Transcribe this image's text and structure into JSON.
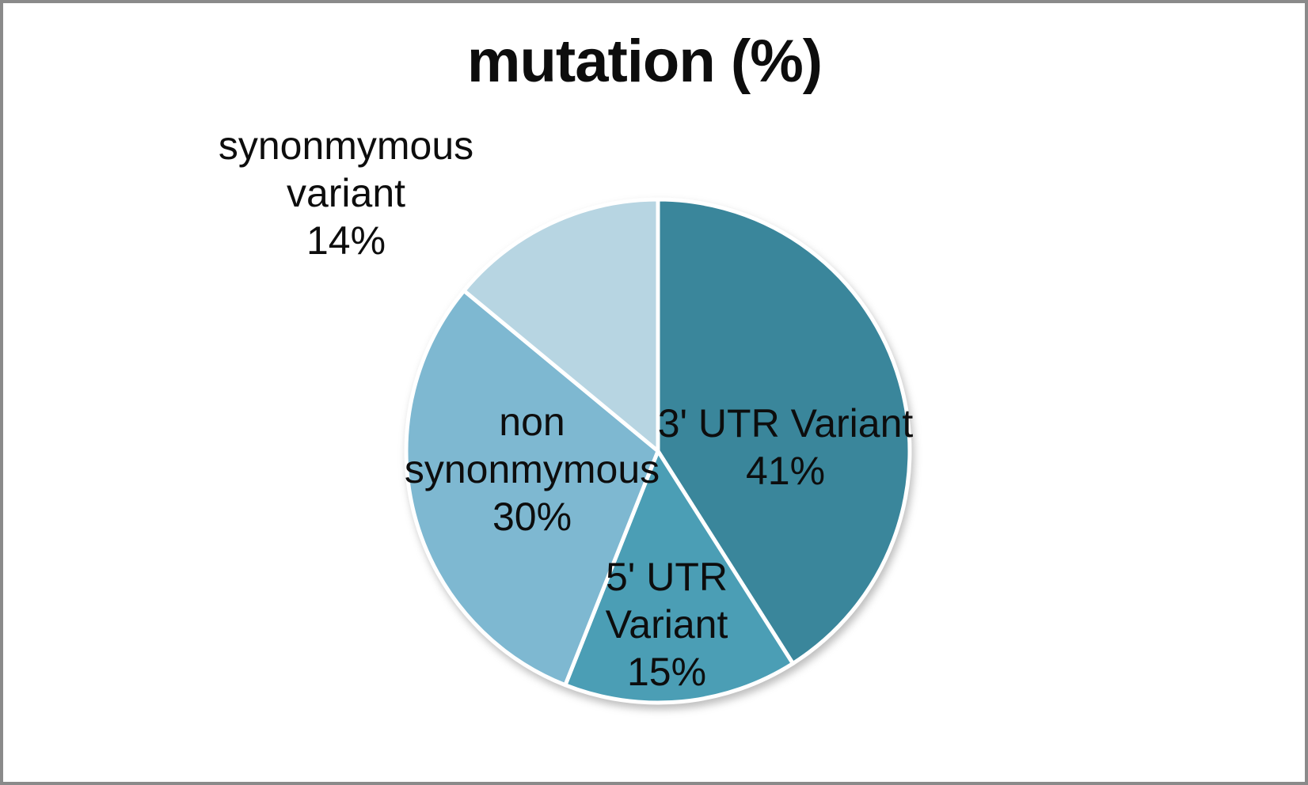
{
  "window": {
    "background_color": "#ffffff",
    "frame_border_color": "#8a8a8a"
  },
  "chart_data": {
    "type": "pie",
    "title": "mutation (%)",
    "start_angle_deg": 0,
    "direction": "clockwise",
    "legend": "none",
    "separator_color": "#ffffff",
    "label_color": "#0d0d0d",
    "slices": [
      {
        "label": "3' UTR Variant",
        "value": 41,
        "percent_text": "41%",
        "color": "#3a869b",
        "label_placement": "inside",
        "label_lines": [
          "3' UTR Variant",
          "41%"
        ]
      },
      {
        "label": "5' UTR Variant",
        "value": 15,
        "percent_text": "15%",
        "color": "#4b9eb5",
        "label_placement": "inside",
        "label_lines": [
          "5' UTR",
          "Variant",
          "15%"
        ]
      },
      {
        "label": "non synonmymous",
        "value": 30,
        "percent_text": "30%",
        "color": "#7eb8d1",
        "label_placement": "inside",
        "label_lines": [
          "non",
          "synonmymous",
          "30%"
        ]
      },
      {
        "label": "synonmymous variant",
        "value": 14,
        "percent_text": "14%",
        "color": "#b7d5e2",
        "label_placement": "outside",
        "label_lines": [
          "synonmymous",
          "variant",
          "14%"
        ]
      }
    ]
  }
}
